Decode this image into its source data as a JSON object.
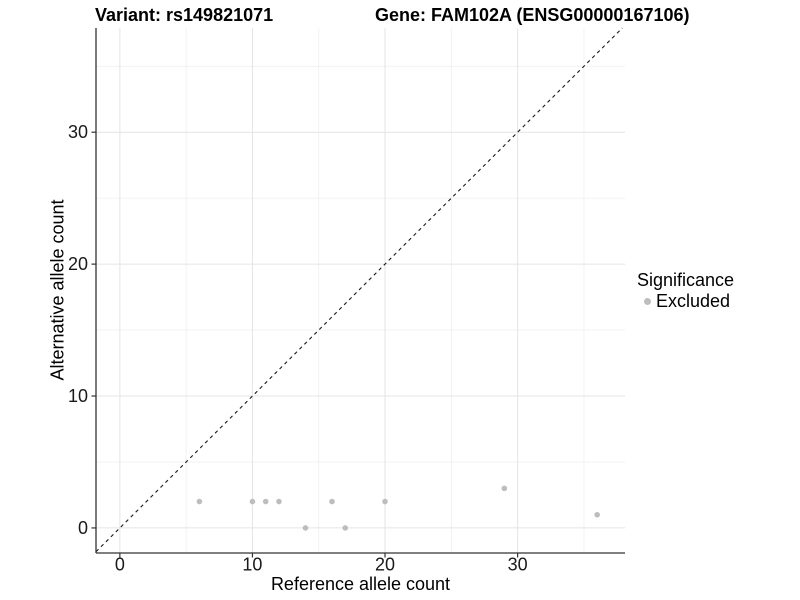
{
  "header": {
    "variant_title": "Variant: rs149821071",
    "gene_title": "Gene: FAM102A (ENSG00000167106)"
  },
  "legend": {
    "title": "Significance",
    "items": [
      {
        "label": "Excluded",
        "color": "#bdbdbd"
      }
    ]
  },
  "chart_data": {
    "type": "scatter",
    "title_left": "Variant: rs149821071",
    "title_right": "Gene: FAM102A (ENSG00000167106)",
    "xlabel": "Reference allele count",
    "ylabel": "Alternative allele count",
    "xlim": [
      -1.8,
      38.1
    ],
    "ylim": [
      -1.9,
      37.9
    ],
    "x_ticks": [
      0,
      10,
      20,
      30
    ],
    "y_ticks": [
      0,
      10,
      20,
      30
    ],
    "x_minor_ticks": [
      5,
      15,
      25,
      35
    ],
    "y_minor_ticks": [
      5,
      15,
      25,
      35
    ],
    "grid": {
      "show": true,
      "major_color": "#e4e4e4",
      "minor_color": "#f1f1f1"
    },
    "axis_color": "#333333",
    "tick_label_color": "#1a1a1a",
    "identity_line": {
      "style": "dashed",
      "slope": 1,
      "intercept": 0,
      "color": "#1a1a1a"
    },
    "legend_position": "right",
    "series": [
      {
        "name": "Excluded",
        "color": "#bdbdbd",
        "points": [
          [
            6,
            2
          ],
          [
            10,
            2
          ],
          [
            11,
            2
          ],
          [
            12,
            2
          ],
          [
            14,
            0
          ],
          [
            16,
            2
          ],
          [
            17,
            0
          ],
          [
            20,
            2
          ],
          [
            29,
            3
          ],
          [
            36,
            1
          ]
        ]
      }
    ]
  }
}
